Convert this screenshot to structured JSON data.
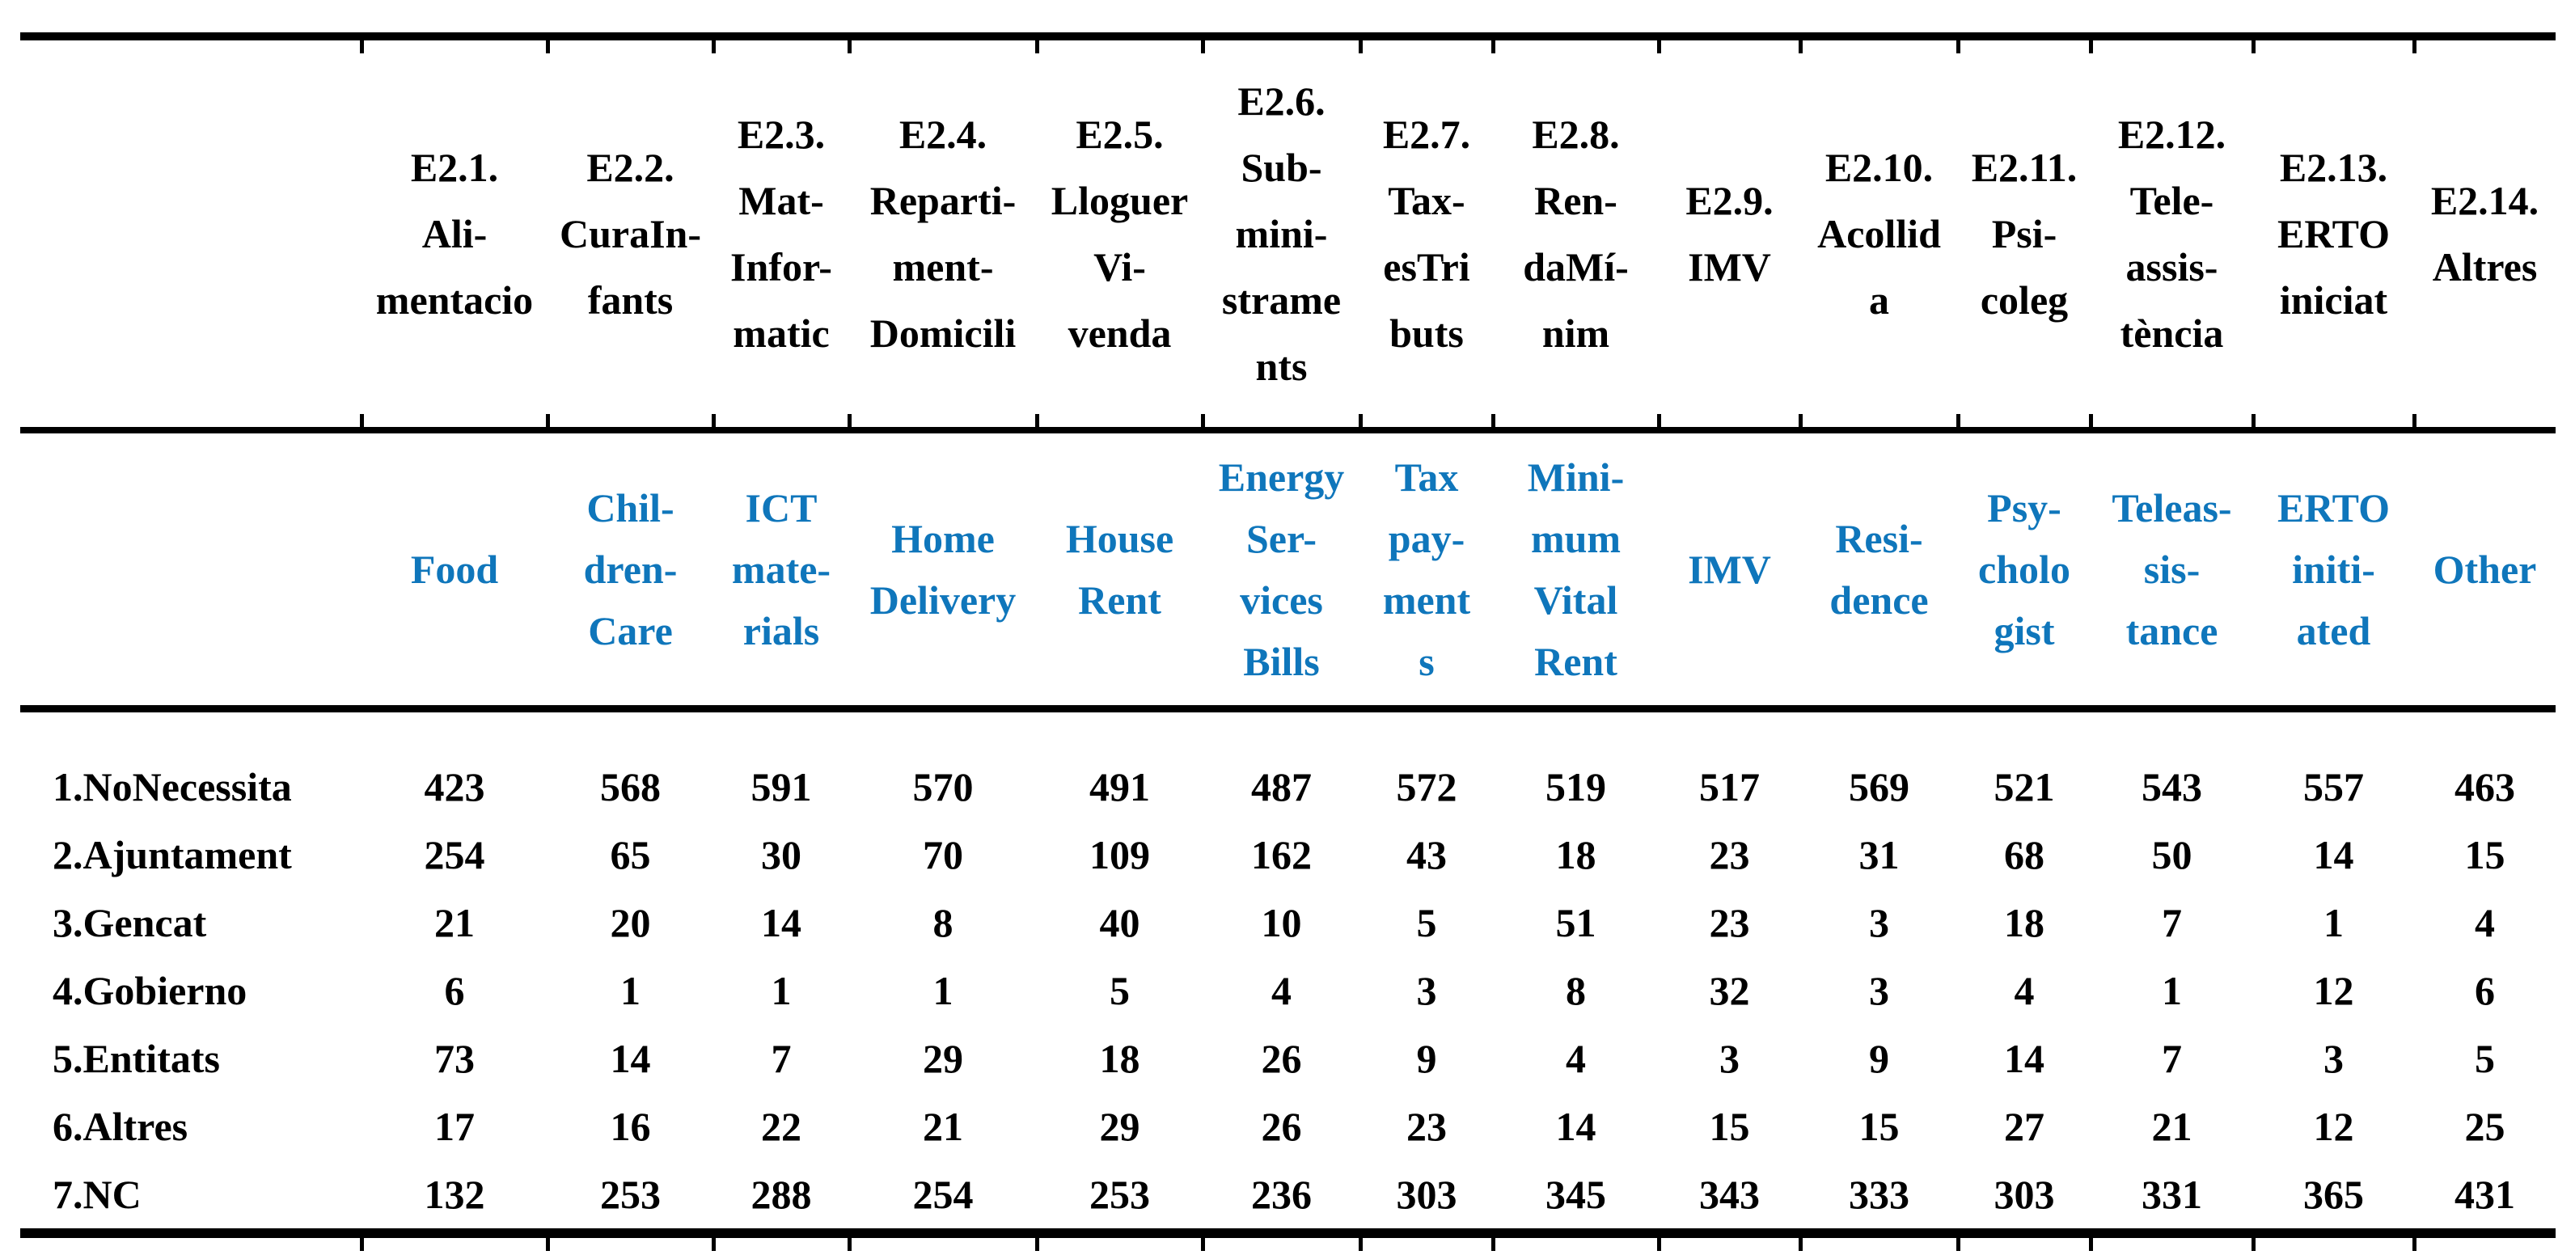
{
  "table": {
    "description_colors": {
      "english_header_text": "#0f76bb",
      "catalan_header_text": "#000000",
      "body_text": "#000000",
      "rule_color": "#000000"
    },
    "columns": [
      {
        "catalan": "E2.1.\nAli-\nmentacio",
        "english": "Food"
      },
      {
        "catalan": "E2.2.\nCuraIn-\nfants",
        "english": "Chil-\ndren-\nCare"
      },
      {
        "catalan": "E2.3.\nMat-\nInfor-\nmatic",
        "english": "ICT\nmate-\nrials"
      },
      {
        "catalan": "E2.4.\nReparti-\nment-\nDomicili",
        "english": "Home\nDelivery"
      },
      {
        "catalan": "E2.5.\nLloguer\nVi-\nvenda",
        "english": "House\nRent"
      },
      {
        "catalan": "E2.6.\nSub-\nmini-\nstrame\nnts",
        "english": "Energy\nSer-\nvices\nBills"
      },
      {
        "catalan": "E2.7.\nTax-\nesTri\nbuts",
        "english": "Tax\npay-\nment\ns"
      },
      {
        "catalan": "E2.8.\nRen-\ndaMí-\nnim",
        "english": "Mini-\nmum\nVital\nRent"
      },
      {
        "catalan": "E2.9.\nIMV",
        "english": "IMV"
      },
      {
        "catalan": "E2.10.\nAcollid\na",
        "english": "Resi-\ndence"
      },
      {
        "catalan": "E2.11.\nPsi-\ncoleg",
        "english": "Psy-\ncholo\ngist"
      },
      {
        "catalan": "E2.12.\nTele-\nassis-\ntència",
        "english": "Teleas-\nsis-\ntance"
      },
      {
        "catalan": "E2.13.\nERTO\niniciat",
        "english": "ERTO\niniti-\nated"
      },
      {
        "catalan": "E2.14.\nAltres",
        "english": "Other"
      }
    ],
    "rows": [
      {
        "label": "1.NoNecessita",
        "values": [
          423,
          568,
          591,
          570,
          491,
          487,
          572,
          519,
          517,
          569,
          521,
          543,
          557,
          463
        ]
      },
      {
        "label": "2.Ajuntament",
        "values": [
          254,
          65,
          30,
          70,
          109,
          162,
          43,
          18,
          23,
          31,
          68,
          50,
          14,
          15
        ]
      },
      {
        "label": "3.Gencat",
        "values": [
          21,
          20,
          14,
          8,
          40,
          10,
          5,
          51,
          23,
          3,
          18,
          7,
          1,
          4
        ]
      },
      {
        "label": "4.Gobierno",
        "values": [
          6,
          1,
          1,
          1,
          5,
          4,
          3,
          8,
          32,
          3,
          4,
          1,
          12,
          6
        ]
      },
      {
        "label": "5.Entitats",
        "values": [
          73,
          14,
          7,
          29,
          18,
          26,
          9,
          4,
          3,
          9,
          14,
          7,
          3,
          5
        ]
      },
      {
        "label": "6.Altres",
        "values": [
          17,
          16,
          22,
          21,
          29,
          26,
          23,
          14,
          15,
          15,
          27,
          21,
          12,
          25
        ]
      },
      {
        "label": "7.NC",
        "values": [
          132,
          253,
          288,
          254,
          253,
          236,
          303,
          345,
          343,
          333,
          303,
          331,
          365,
          431
        ]
      }
    ]
  }
}
